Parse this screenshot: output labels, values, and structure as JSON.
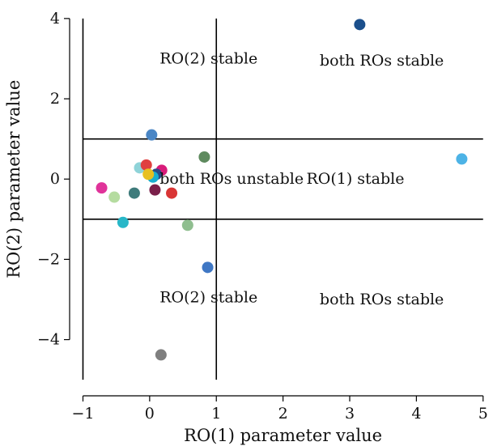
{
  "chart_data": {
    "type": "scatter",
    "title": "",
    "xlabel": "RO(1) parameter value",
    "ylabel": "RO(2) parameter value",
    "xlim": [
      -1.2,
      5.1
    ],
    "ylim": [
      -5.4,
      4.3
    ],
    "xticks": [
      -1,
      0,
      1,
      2,
      3,
      4,
      5
    ],
    "yticks": [
      -4,
      -2,
      0,
      2,
      4
    ],
    "xtick_labels": [
      "−1",
      "0",
      "1",
      "2",
      "3",
      "4",
      "5"
    ],
    "ytick_labels": [
      "−4",
      "−2",
      "0",
      "2",
      "4"
    ],
    "threshold_lines": {
      "vertical": [
        {
          "x": -1,
          "y_from": -5,
          "y_to": 4
        },
        {
          "x": 1,
          "y_from": -5,
          "y_to": 4
        }
      ],
      "horizontal": [
        {
          "y": 1,
          "x_from": -1,
          "x_to": 5
        },
        {
          "y": -1,
          "x_from": -1,
          "x_to": 5
        }
      ]
    },
    "region_labels": [
      {
        "text": "RO(2) stable",
        "x": 0.15,
        "y": 3.0
      },
      {
        "text": "both ROs stable",
        "x": 2.55,
        "y": 2.95
      },
      {
        "text": "both ROs unstable",
        "x": 0.15,
        "y": 0.0
      },
      {
        "text": "RO(1) stable",
        "x": 2.35,
        "y": 0.0
      },
      {
        "text": "RO(2) stable",
        "x": 0.15,
        "y": -2.95
      },
      {
        "text": "both ROs stable",
        "x": 2.55,
        "y": -3.0
      }
    ],
    "points": [
      {
        "x": 3.15,
        "y": 3.85,
        "color": "#1b4f8c"
      },
      {
        "x": 4.68,
        "y": 0.5,
        "color": "#4db3e6"
      },
      {
        "x": 0.03,
        "y": 1.1,
        "color": "#4a86c5"
      },
      {
        "x": 0.82,
        "y": 0.55,
        "color": "#5e8a5e"
      },
      {
        "x": -0.15,
        "y": 0.28,
        "color": "#8fd3d8"
      },
      {
        "x": -0.05,
        "y": 0.35,
        "color": "#e04040"
      },
      {
        "x": 0.18,
        "y": 0.22,
        "color": "#d81b7a"
      },
      {
        "x": 0.1,
        "y": 0.12,
        "color": "#2a4a88"
      },
      {
        "x": 0.05,
        "y": 0.05,
        "color": "#1aaed0"
      },
      {
        "x": -0.02,
        "y": 0.12,
        "color": "#e8c020"
      },
      {
        "x": 0.08,
        "y": -0.27,
        "color": "#7a1f4a"
      },
      {
        "x": 0.33,
        "y": -0.35,
        "color": "#d93535"
      },
      {
        "x": -0.23,
        "y": -0.35,
        "color": "#3e7b7b"
      },
      {
        "x": -0.53,
        "y": -0.45,
        "color": "#b5dca0"
      },
      {
        "x": -0.72,
        "y": -0.22,
        "color": "#e0339a"
      },
      {
        "x": -0.4,
        "y": -1.08,
        "color": "#28b7c8"
      },
      {
        "x": 0.57,
        "y": -1.15,
        "color": "#8fbe8f"
      },
      {
        "x": 0.87,
        "y": -2.2,
        "color": "#3f77c4"
      },
      {
        "x": 0.17,
        "y": -4.38,
        "color": "#7f7f7f"
      }
    ]
  }
}
